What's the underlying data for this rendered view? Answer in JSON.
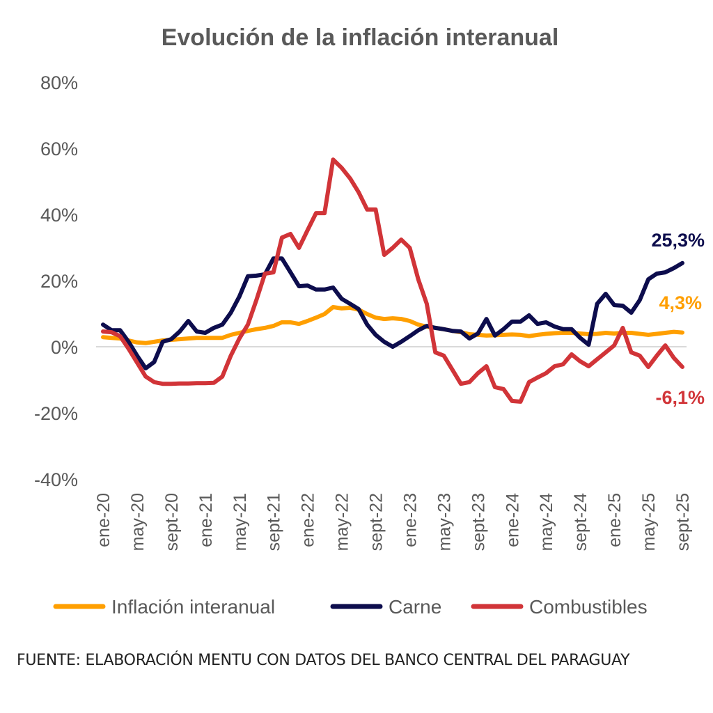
{
  "chart_data": {
    "type": "line",
    "title": "Evolución de la inflación interanual",
    "xlabel": "",
    "ylabel": "",
    "ylim": [
      -40,
      80
    ],
    "yticks": [
      80,
      60,
      40,
      20,
      0,
      -20,
      -40
    ],
    "ytick_labels": [
      "80%",
      "60%",
      "40%",
      "20%",
      "0%",
      "-20%",
      "-40%"
    ],
    "x_start": "ene-20",
    "x_end": "sept-25",
    "x_tick_labels": [
      "ene-20",
      "may-20",
      "sept-20",
      "ene-21",
      "may-21",
      "sept-21",
      "ene-22",
      "may-22",
      "sept-22",
      "ene-23",
      "may-23",
      "sept-23",
      "ene-24",
      "may-24",
      "sept-24",
      "ene-25",
      "may-25",
      "sept-25"
    ],
    "x_tick_every_months": 4,
    "grid": false,
    "zero_line": true,
    "legend_position": "bottom",
    "series": [
      {
        "name": "Inflación interanual",
        "color": "#FF9F00",
        "end_label": "4,3%",
        "values": [
          2.9,
          2.7,
          2.5,
          1.9,
          1.3,
          1.1,
          1.5,
          1.9,
          2.1,
          2.3,
          2.5,
          2.7,
          2.7,
          2.7,
          2.7,
          3.6,
          4.2,
          4.8,
          5.3,
          5.7,
          6.3,
          7.4,
          7.4,
          6.9,
          7.8,
          8.8,
          9.9,
          12.0,
          11.6,
          11.8,
          11.2,
          9.9,
          8.8,
          8.4,
          8.6,
          8.4,
          7.8,
          6.7,
          6.1,
          5.7,
          5.3,
          4.8,
          4.4,
          3.8,
          3.6,
          3.4,
          3.5,
          3.6,
          3.7,
          3.6,
          3.2,
          3.6,
          3.9,
          4.1,
          4.2,
          4.2,
          4.0,
          3.8,
          3.9,
          4.2,
          4.0,
          4.2,
          4.2,
          3.9,
          3.6,
          3.9,
          4.2,
          4.5,
          4.3
        ]
      },
      {
        "name": "Carne",
        "color": "#0D0D4D",
        "end_label": "25,3%",
        "values": [
          6.7,
          5.0,
          5.0,
          1.5,
          -2.7,
          -6.5,
          -4.6,
          1.5,
          2.3,
          4.6,
          7.8,
          4.6,
          4.2,
          5.7,
          6.7,
          10.3,
          15.2,
          21.3,
          21.5,
          21.9,
          26.7,
          26.7,
          22.5,
          18.3,
          18.5,
          17.3,
          17.3,
          17.9,
          14.5,
          13.0,
          11.4,
          6.7,
          3.6,
          1.5,
          0.0,
          1.5,
          3.2,
          5.0,
          6.3,
          5.7,
          5.3,
          4.8,
          4.6,
          2.5,
          4.0,
          8.4,
          3.4,
          5.3,
          7.6,
          7.6,
          9.5,
          6.9,
          7.4,
          6.1,
          5.3,
          5.3,
          2.7,
          0.6,
          13.0,
          16.0,
          12.6,
          12.4,
          10.3,
          14.1,
          20.4,
          22.1,
          22.5,
          23.8,
          25.3
        ]
      },
      {
        "name": "Combustibles",
        "color": "#D13438",
        "end_label": "-6,1%",
        "values": [
          4.6,
          4.4,
          3.2,
          -0.6,
          -4.8,
          -9.0,
          -10.7,
          -11.2,
          -11.2,
          -11.1,
          -11.1,
          -11.0,
          -11.0,
          -10.9,
          -9.0,
          -2.7,
          2.5,
          6.7,
          14.1,
          22.1,
          22.5,
          33.0,
          34.1,
          29.9,
          35.2,
          40.4,
          40.4,
          56.6,
          54.1,
          50.9,
          46.7,
          41.5,
          41.5,
          27.8,
          29.9,
          32.4,
          29.9,
          20.4,
          13.0,
          -1.7,
          -2.7,
          -6.9,
          -11.2,
          -10.7,
          -8.0,
          -5.9,
          -12.2,
          -12.8,
          -16.4,
          -16.6,
          -10.7,
          -9.3,
          -8.0,
          -5.9,
          -5.3,
          -2.3,
          -4.4,
          -5.9,
          -3.8,
          -1.7,
          0.4,
          5.7,
          -1.7,
          -2.7,
          -6.1,
          -2.7,
          0.4,
          -3.4,
          -6.1
        ]
      }
    ]
  },
  "source_text": "FUENTE: ELABORACIÓN MENTU CON DATOS DEL BANCO CENTRAL DEL PARAGUAY"
}
